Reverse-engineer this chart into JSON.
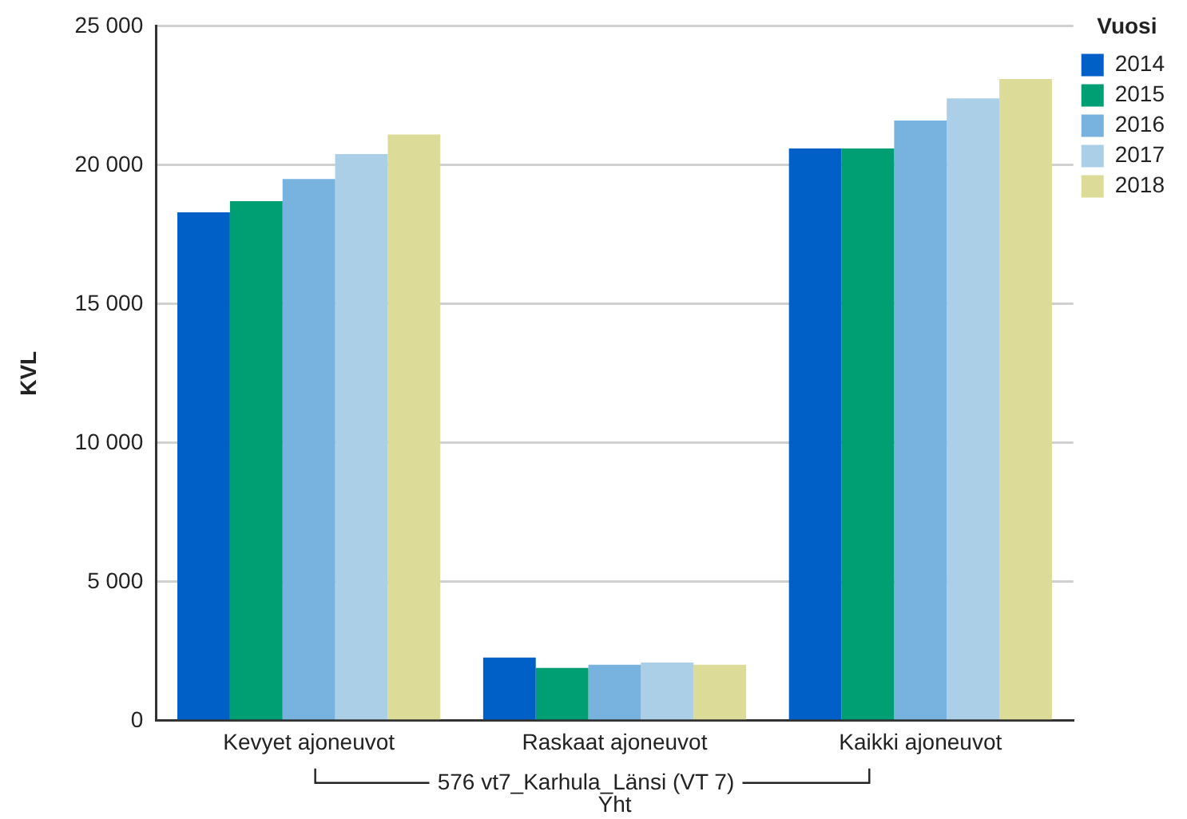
{
  "chart_data": {
    "type": "bar",
    "ylabel": "KVL",
    "xlabel": "Yht",
    "legend_title": "Vuosi",
    "legend": "top right",
    "grid": "y",
    "categories": [
      "Kevyet ajoneuvot",
      "Raskaat ajoneuvot",
      "Kaikki ajoneuvot"
    ],
    "ylim": [
      0,
      25000
    ],
    "yticks": [
      {
        "value": 0,
        "label": "0"
      },
      {
        "value": 5000,
        "label": "5 000"
      },
      {
        "value": 10000,
        "label": "10 000"
      },
      {
        "value": 15000,
        "label": "15 000"
      },
      {
        "value": 20000,
        "label": "20 000"
      },
      {
        "value": 25000,
        "label": "25 000"
      }
    ],
    "annotations": [
      "576 vt7_Karhula_Länsi (VT 7)"
    ],
    "series": [
      {
        "name": "2014",
        "color": "#0060c8",
        "values": [
          18300,
          2270,
          20600
        ]
      },
      {
        "name": "2015",
        "color": "#009e73",
        "values": [
          18700,
          1900,
          20600
        ]
      },
      {
        "name": "2016",
        "color": "#78b2de",
        "values": [
          19500,
          2010,
          21600
        ]
      },
      {
        "name": "2017",
        "color": "#abcfe6",
        "values": [
          20400,
          2090,
          22400
        ]
      },
      {
        "name": "2018",
        "color": "#dcdc98",
        "values": [
          21100,
          2010,
          23100
        ]
      }
    ]
  }
}
